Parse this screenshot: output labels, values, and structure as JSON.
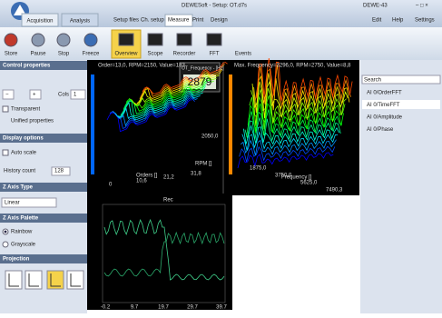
{
  "title_bar": {
    "title": "DEWESoft - Setup: OT.d7s",
    "device": "DEWE-43"
  },
  "tabs": {
    "main": [
      "Acquisition",
      "Analysis"
    ],
    "sub": [
      "Setup files",
      "Ch. setup",
      "Measure",
      "Print",
      "Design"
    ],
    "right": [
      "Edit",
      "Help",
      "Settings"
    ]
  },
  "toolbar": [
    "Store",
    "Pause",
    "Stop",
    "Freeze",
    "Overview",
    "Scope",
    "Recorder",
    "FFT",
    "Events"
  ],
  "left_panel": {
    "control_properties": "Control properties",
    "cols_label": "Cols",
    "cols_value": "1",
    "transparent": "Transparent",
    "unified": "Unified properties",
    "display_options": "Display options",
    "auto_scale": "Auto scale",
    "history_label": "History count",
    "history_value": "128",
    "z_axis_type": "Z Axis Type",
    "z_axis_type_value": "Linear",
    "z_axis_palette": "Z Axis Palette",
    "rainbow": "Rainbow",
    "grayscale": "Grayscale",
    "projection": "Projection"
  },
  "plots": {
    "order": {
      "header": "Order=13,0, RPM=2150, Value=183",
      "x_label": "Orders []",
      "y_label": "RPM []",
      "x_ticks": [
        "0",
        "10,6",
        "21,2",
        "31,8"
      ],
      "y_ticks": [
        "2050,0"
      ]
    },
    "digital": {
      "label": "OT_Frequency - [Hz]",
      "value": "2879"
    },
    "frequency": {
      "header": "Max. Frequency=3296,0, RPM=2750, Value=8,8",
      "x_label": "Frequency []",
      "x_ticks": [
        "1875,0",
        "3750,0",
        "5625,0",
        "7490,3"
      ]
    },
    "recorder": {
      "title": "Rec",
      "x_ticks": [
        "-0.2",
        "9.7",
        "19.7",
        "29.7",
        "39.7"
      ]
    }
  },
  "right_panel": {
    "search": "Search",
    "channels": [
      "AI 0/OrderFFT",
      "AI 0/TimeFFT",
      "AI 0/Amplitude",
      "AI 0/Phase"
    ]
  }
}
